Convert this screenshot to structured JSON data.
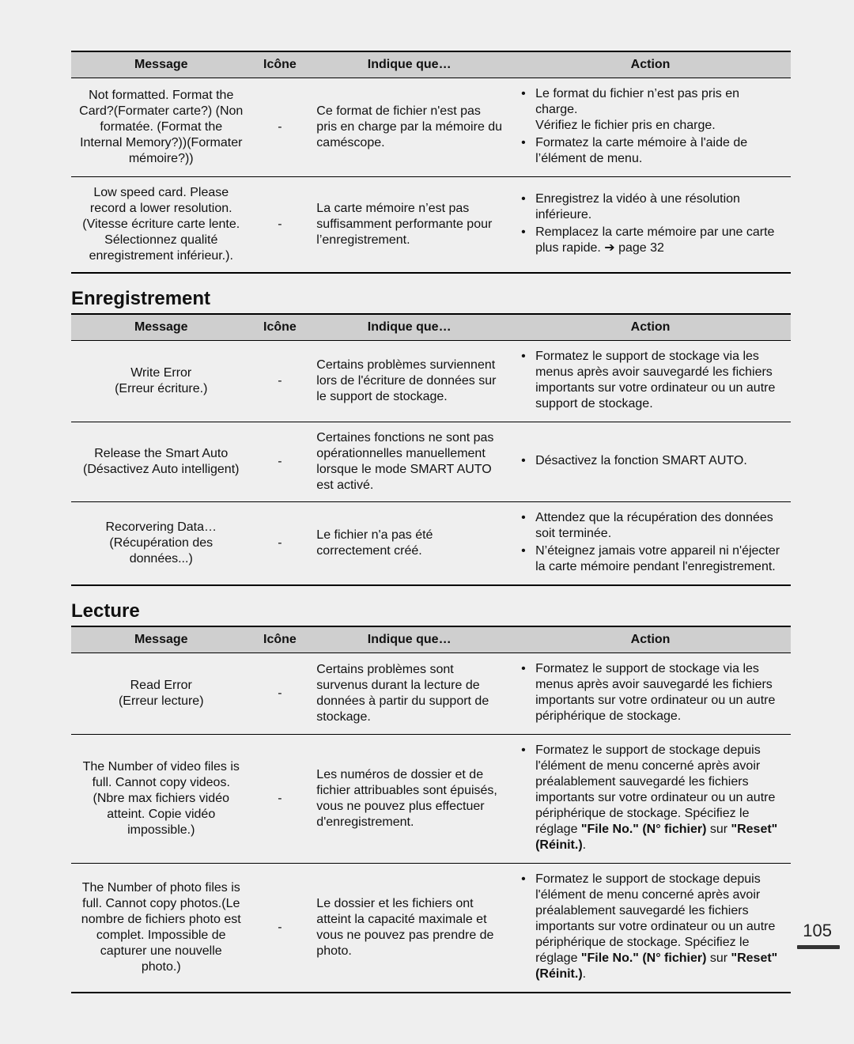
{
  "pageNumber": "105",
  "headers": {
    "message": "Message",
    "icon": "Icône",
    "cause": "Indique que…",
    "action": "Action"
  },
  "sections": [
    {
      "title": null,
      "rows": [
        {
          "message": "Not formatted. Format the Card?(Formater carte?) (Non formatée. (Format the Internal Memory?))(Formater mémoire?))",
          "icon": "-",
          "cause": "Ce format de fichier n'est pas pris en charge par la mémoire du caméscope.",
          "actions": [
            "Le format du fichier n’est pas pris en charge.\nVérifiez le fichier pris en charge.",
            "Formatez la carte mémoire à l'aide de l’élément de menu."
          ]
        },
        {
          "message": "Low speed card. Please record a lower resolution. (Vitesse écriture carte lente. Sélectionnez qualité enregistrement inférieur.).",
          "icon": "-",
          "cause": "La carte mémoire n’est pas suffisamment performante pour l’enregistrement.",
          "actions": [
            "Enregistrez la vidéo à une résolution inférieure.",
            "Remplacez la carte mémoire par une carte plus rapide. ➔ page 32"
          ]
        }
      ]
    },
    {
      "title": "Enregistrement",
      "rows": [
        {
          "message": "Write Error\n(Erreur écriture.)",
          "icon": "-",
          "cause": "Certains problèmes surviennent lors de l'écriture de données sur le support de stockage.",
          "actions": [
            "Formatez le support de stockage via les menus après avoir sauvegardé les fichiers importants sur votre ordinateur ou un autre support de stockage."
          ]
        },
        {
          "message": "Release the Smart Auto (Désactivez Auto intelligent)",
          "icon": "-",
          "cause": "Certaines fonctions ne sont pas opérationnelles manuellement lorsque le mode SMART AUTO est activé.",
          "actions": [
            "Désactivez la fonction SMART AUTO."
          ]
        },
        {
          "message": "Recorvering Data…\n(Récupération des données...)",
          "icon": "-",
          "cause": "Le fichier n'a pas été correctement créé.",
          "actions": [
            "Attendez que la récupération des données soit terminée.",
            "N’éteignez jamais votre appareil ni n'éjecter la carte mémoire pendant l'enregistrement."
          ]
        }
      ]
    },
    {
      "title": "Lecture",
      "rows": [
        {
          "message": "Read Error\n(Erreur lecture)",
          "icon": "-",
          "cause": "Certains problèmes sont survenus durant la lecture de données à partir du support de stockage.",
          "actions": [
            "Formatez le support de stockage via les menus après avoir sauvegardé les fichiers importants sur votre ordinateur ou un autre périphérique de stockage."
          ]
        },
        {
          "message": "The Number of video files is full. Cannot copy videos. (Nbre max fichiers vidéo atteint. Copie vidéo impossible.)",
          "icon": "-",
          "cause": "Les numéros de dossier et de fichier attribuables sont épuisés, vous ne pouvez plus effectuer d'enregistrement.",
          "actions": [
            {
              "html": "Formatez le support de stockage depuis l'élément de menu concerné après avoir préalablement sauvegardé les fichiers importants sur votre ordinateur ou un autre périphérique de stockage. Spécifiez le réglage <span class=\"bold\">\"File No.\" (N° fichier)</span> sur <span class=\"bold\">\"Reset\" (Réinit.)</span>."
            }
          ]
        },
        {
          "message": "The Number of photo files is full. Cannot copy photos.(Le nombre de fichiers photo est complet. Impossible de capturer une nouvelle photo.)",
          "icon": "-",
          "cause": "Le dossier et les fichiers ont atteint la capacité maximale et vous ne pouvez pas prendre de photo.",
          "actions": [
            {
              "html": "Formatez le support de stockage depuis l'élément de menu concerné après avoir préalablement sauvegardé les fichiers importants sur votre ordinateur ou un autre périphérique de stockage. Spécifiez le réglage <span class=\"bold\">\"File No.\" (N° fichier)</span> sur <span class=\"bold\">\"Reset\" (Réinit.)</span>."
            }
          ]
        }
      ]
    }
  ]
}
